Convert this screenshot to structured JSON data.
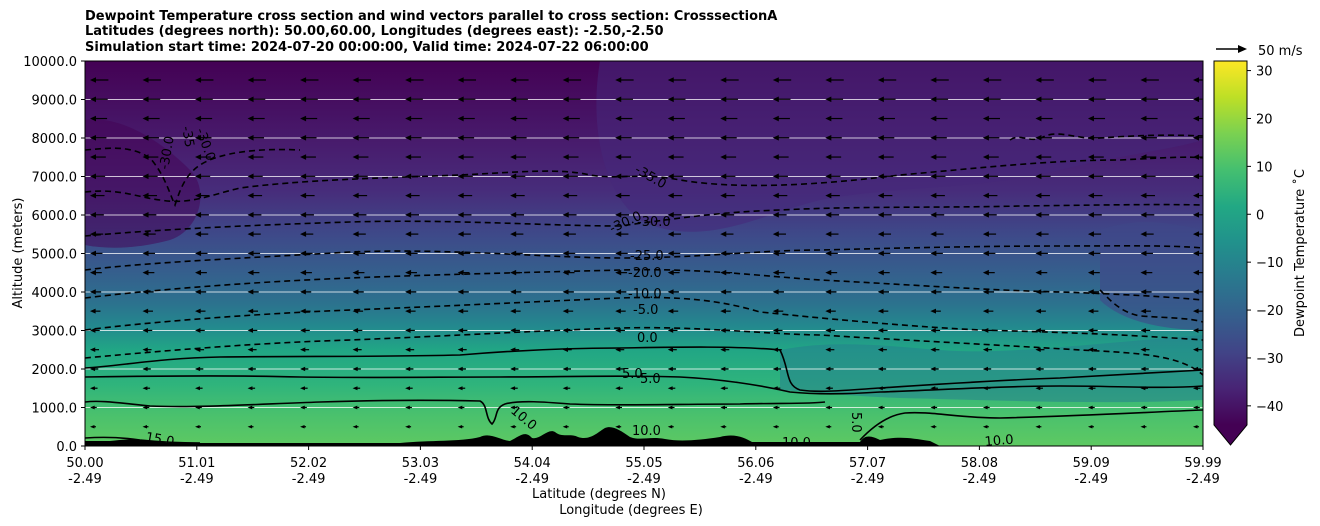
{
  "titles": {
    "line1": "Dewpoint Temperature cross section and wind vectors parallel to cross section: CrosssectionA",
    "line2": "Latitudes (degrees north): 50.00,60.00, Longitudes (degrees east): -2.50,-2.50",
    "line3": "Simulation start time: 2024-07-20 00:00:00, Valid time: 2024-07-22 06:00:00"
  },
  "wind_key": {
    "label": "50 m/s"
  },
  "chart_data": {
    "type": "heatmap",
    "title": "Dewpoint Temperature cross section and wind vectors parallel to cross section: CrosssectionA",
    "ylabel": "Altitude (meters)",
    "xlabel_1": "Latitude (degrees N)",
    "xlabel_2": "Longitude (degrees E)",
    "ylim": [
      0,
      10000
    ],
    "y_ticks": [
      "0.0",
      "1000.0",
      "2000.0",
      "3000.0",
      "4000.0",
      "5000.0",
      "6000.0",
      "7000.0",
      "8000.0",
      "9000.0",
      "10000.0"
    ],
    "x_ticks_lat": [
      "50.00",
      "51.01",
      "52.02",
      "53.03",
      "54.04",
      "55.05",
      "56.06",
      "57.07",
      "58.08",
      "59.09",
      "59.99"
    ],
    "x_ticks_lon": [
      "-2.49",
      "-2.49",
      "-2.49",
      "-2.49",
      "-2.49",
      "-2.49",
      "-2.49",
      "-2.49",
      "-2.49",
      "-2.49",
      "-2.49"
    ],
    "colorbar": {
      "label": "Dewpoint Temperature ˚C",
      "ticks": [
        "30",
        "20",
        "10",
        "0",
        "−10",
        "−20",
        "−30",
        "−40"
      ],
      "range": [
        -44,
        32
      ],
      "extend": "min",
      "colormap": "viridis"
    },
    "contour_levels": [
      {
        "value": 15.0,
        "style": "solid"
      },
      {
        "value": 10.0,
        "style": "solid"
      },
      {
        "value": 5.0,
        "style": "solid"
      },
      {
        "value": 0.0,
        "style": "solid"
      },
      {
        "value": -5.0,
        "style": "dashed"
      },
      {
        "value": -10.0,
        "style": "dashed"
      },
      {
        "value": -20.0,
        "style": "dashed"
      },
      {
        "value": -25.0,
        "style": "dashed"
      },
      {
        "value": -30.0,
        "style": "dashed"
      },
      {
        "value": -35.0,
        "style": "dashed"
      }
    ],
    "contour_labels": [
      "15.0",
      "10.0",
      "10.0",
      "10.0",
      "10.0",
      "5.0",
      "5.0",
      "5.0",
      "0.0",
      "-5.0",
      "-10.0",
      "-20.0",
      "-25.0",
      "-30.0",
      "-30.0",
      "-35.0",
      "-30.0",
      "-35",
      "-30.0"
    ],
    "wind_vectors": "parallel to cross section, pointing toward lower latitude"
  }
}
